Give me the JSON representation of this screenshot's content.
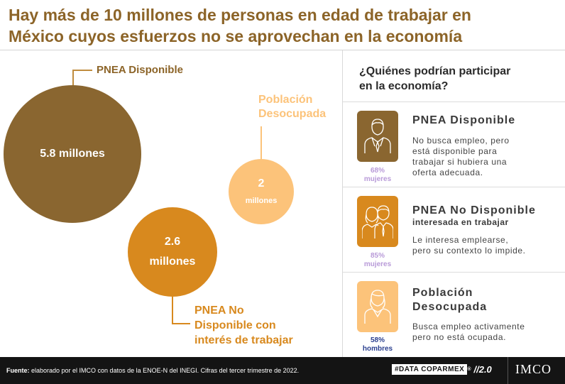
{
  "title": {
    "line1": "Hay más de 10 millones de personas en edad de trabajar en",
    "line2": "México cuyos esfuerzos no se aprovechan en la economía"
  },
  "bubbles": {
    "pnea_disponible": {
      "value": "5.8 millones",
      "label": "PNEA Disponible",
      "color": "#8a6630"
    },
    "poblacion_desocupada": {
      "value_line1": "2",
      "value_line2": "millones",
      "label_line1": "Población",
      "label_line2": "Desocupada",
      "color": "#fcc37a"
    },
    "pnea_no_disponible": {
      "value_line1": "2.6",
      "value_line2": "millones",
      "label_line1": "PNEA No",
      "label_line2": "Disponible con",
      "label_line3": "interés de trabajar",
      "color": "#d8891e"
    }
  },
  "right_panel": {
    "question_line1": "¿Quiénes podrían participar",
    "question_line2": "en la economía?",
    "cards": [
      {
        "icon": "man-suit-icon",
        "pct_line1": "68%",
        "pct_line2": "mujeres",
        "pct_color": "#b89ad8",
        "title": "PNEA Disponible",
        "desc_line1": "No busca empleo, pero",
        "desc_line2": "está disponible para",
        "desc_line3": "trabajar si hubiera una",
        "desc_line4": "oferta adecuada."
      },
      {
        "icon": "couple-icon",
        "pct_line1": "85%",
        "pct_line2": "mujeres",
        "pct_color": "#b89ad8",
        "title": "PNEA No Disponible",
        "subtitle": "interesada en trabajar",
        "desc_line1": "Le interesa emplearse,",
        "desc_line2": "pero su contexto lo impide."
      },
      {
        "icon": "woman-icon",
        "pct_line1": "58%",
        "pct_line2": "hombres",
        "pct_color": "#2a3f8f",
        "title_line1": "Población",
        "title_line2": "Desocupada",
        "desc_line1": "Busca empleo activamente",
        "desc_line2": "pero no está ocupada."
      }
    ]
  },
  "footer": {
    "source_label": "Fuente:",
    "source_text": " elaborado por el IMCO con datos de la ENOE-N del INEGI. Cifras del tercer trimestre de 2022.",
    "brand_tag": "#DATA COPARMEX",
    "brand_reg": "®",
    "brand_version": "//2.0",
    "logo": "IMCO"
  }
}
